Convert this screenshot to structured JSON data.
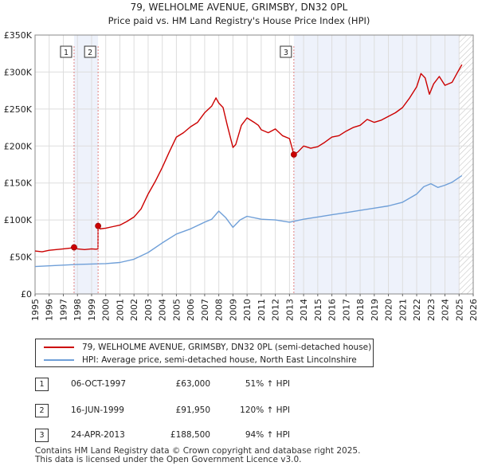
{
  "chart_data": {
    "type": "line",
    "title": "79, WELHOLME AVENUE, GRIMSBY, DN32 0PL",
    "subtitle": "Price paid vs. HM Land Registry's House Price Index (HPI)",
    "xlim": [
      1995,
      2026
    ],
    "ylim": [
      0,
      350000
    ],
    "y_ticks": [
      0,
      50000,
      100000,
      150000,
      200000,
      250000,
      300000,
      350000
    ],
    "y_tick_labels": [
      "£0",
      "£50K",
      "£100K",
      "£150K",
      "£200K",
      "£250K",
      "£300K",
      "£350K"
    ],
    "x_ticks": [
      "1995",
      "1996",
      "1997",
      "1998",
      "1999",
      "2000",
      "2001",
      "2002",
      "2003",
      "2004",
      "2005",
      "2006",
      "2007",
      "2008",
      "2009",
      "2010",
      "2011",
      "2012",
      "2013",
      "2014",
      "2015",
      "2016",
      "2017",
      "2018",
      "2019",
      "2020",
      "2021",
      "2022",
      "2023",
      "2024",
      "2025",
      "2026"
    ],
    "future_start": 2025.0,
    "series": [
      {
        "name": "79, WELHOLME AVENUE, GRIMSBY, DN32 0PL (semi-detached house)",
        "color": "#cc0000",
        "x": [
          1995.0,
          1995.5,
          1996.0,
          1996.5,
          1997.0,
          1997.5,
          1997.76,
          1998.0,
          1998.5,
          1999.0,
          1999.3,
          1999.45,
          1999.46,
          1999.6,
          2000.0,
          2000.5,
          2001.0,
          2001.5,
          2002.0,
          2002.5,
          2003.0,
          2003.5,
          2004.0,
          2004.5,
          2005.0,
          2005.5,
          2006.0,
          2006.5,
          2007.0,
          2007.5,
          2007.8,
          2008.0,
          2008.3,
          2008.6,
          2009.0,
          2009.2,
          2009.6,
          2010.0,
          2010.5,
          2010.8,
          2011.0,
          2011.5,
          2012.0,
          2012.5,
          2013.0,
          2013.31,
          2013.6,
          2014.0,
          2014.5,
          2015.0,
          2015.5,
          2016.0,
          2016.5,
          2017.0,
          2017.5,
          2018.0,
          2018.5,
          2019.0,
          2019.5,
          2020.0,
          2020.5,
          2021.0,
          2021.5,
          2022.0,
          2022.3,
          2022.6,
          2022.9,
          2023.2,
          2023.6,
          2024.0,
          2024.5,
          2024.9,
          2025.2
        ],
        "values": [
          58000,
          57000,
          59000,
          60000,
          61000,
          62000,
          63000,
          61000,
          60000,
          61000,
          60500,
          61000,
          91950,
          88000,
          89000,
          91000,
          93000,
          98000,
          104000,
          115000,
          135000,
          152000,
          171000,
          192000,
          212000,
          218000,
          226000,
          232000,
          245000,
          254000,
          265000,
          258000,
          252000,
          228000,
          198000,
          202000,
          228000,
          238000,
          232000,
          228000,
          222000,
          218000,
          223000,
          214000,
          210000,
          188500,
          192000,
          200000,
          197000,
          199000,
          205000,
          212000,
          214000,
          220000,
          225000,
          228000,
          236000,
          232000,
          235000,
          240000,
          245000,
          252000,
          265000,
          280000,
          298000,
          292000,
          270000,
          284000,
          294000,
          282000,
          286000,
          300000,
          310000
        ]
      },
      {
        "name": "HPI: Average price, semi-detached house, North East Lincolnshire",
        "color": "#6f9fd8",
        "x": [
          1995.0,
          1996.0,
          1997.0,
          1998.0,
          1999.0,
          2000.0,
          2001.0,
          2002.0,
          2003.0,
          2004.0,
          2005.0,
          2006.0,
          2007.0,
          2007.5,
          2008.0,
          2008.5,
          2009.0,
          2009.5,
          2010.0,
          2011.0,
          2012.0,
          2013.0,
          2014.0,
          2015.0,
          2016.0,
          2017.0,
          2018.0,
          2019.0,
          2020.0,
          2021.0,
          2022.0,
          2022.5,
          2023.0,
          2023.5,
          2024.0,
          2024.5,
          2025.2
        ],
        "values": [
          37000,
          38000,
          39000,
          40000,
          40500,
          41000,
          42500,
          47000,
          56000,
          69000,
          81000,
          88000,
          97000,
          101000,
          112000,
          103000,
          90000,
          100000,
          105000,
          101000,
          100000,
          97000,
          101000,
          104000,
          107000,
          110000,
          113000,
          116000,
          119000,
          124000,
          135000,
          145000,
          149000,
          144000,
          147000,
          151000,
          160000
        ]
      }
    ],
    "markers": [
      {
        "label": "1",
        "x": 1997.76,
        "y": 63000
      },
      {
        "label": "2",
        "x": 1999.46,
        "y": 91950
      },
      {
        "label": "3",
        "x": 2013.31,
        "y": 188500
      }
    ]
  },
  "legend": {
    "property_label": "79, WELHOLME AVENUE, GRIMSBY, DN32 0PL (semi-detached house)",
    "hpi_label": "HPI: Average price, semi-detached house, North East Lincolnshire"
  },
  "sales": [
    {
      "num": "1",
      "date": "06-OCT-1997",
      "price": "£63,000",
      "hpi": "51% ↑ HPI"
    },
    {
      "num": "2",
      "date": "16-JUN-1999",
      "price": "£91,950",
      "hpi": "120% ↑ HPI"
    },
    {
      "num": "3",
      "date": "24-APR-2013",
      "price": "£188,500",
      "hpi": "94% ↑ HPI"
    }
  ],
  "footer": {
    "line1": "Contains HM Land Registry data © Crown copyright and database right 2025.",
    "line2": "This data is licensed under the Open Government Licence v3.0."
  },
  "colors": {
    "property": "#cc0000",
    "hpi": "#6f9fd8",
    "shade": "#eef2fb",
    "grid": "#dddddd",
    "marker_line": "#e08080"
  }
}
